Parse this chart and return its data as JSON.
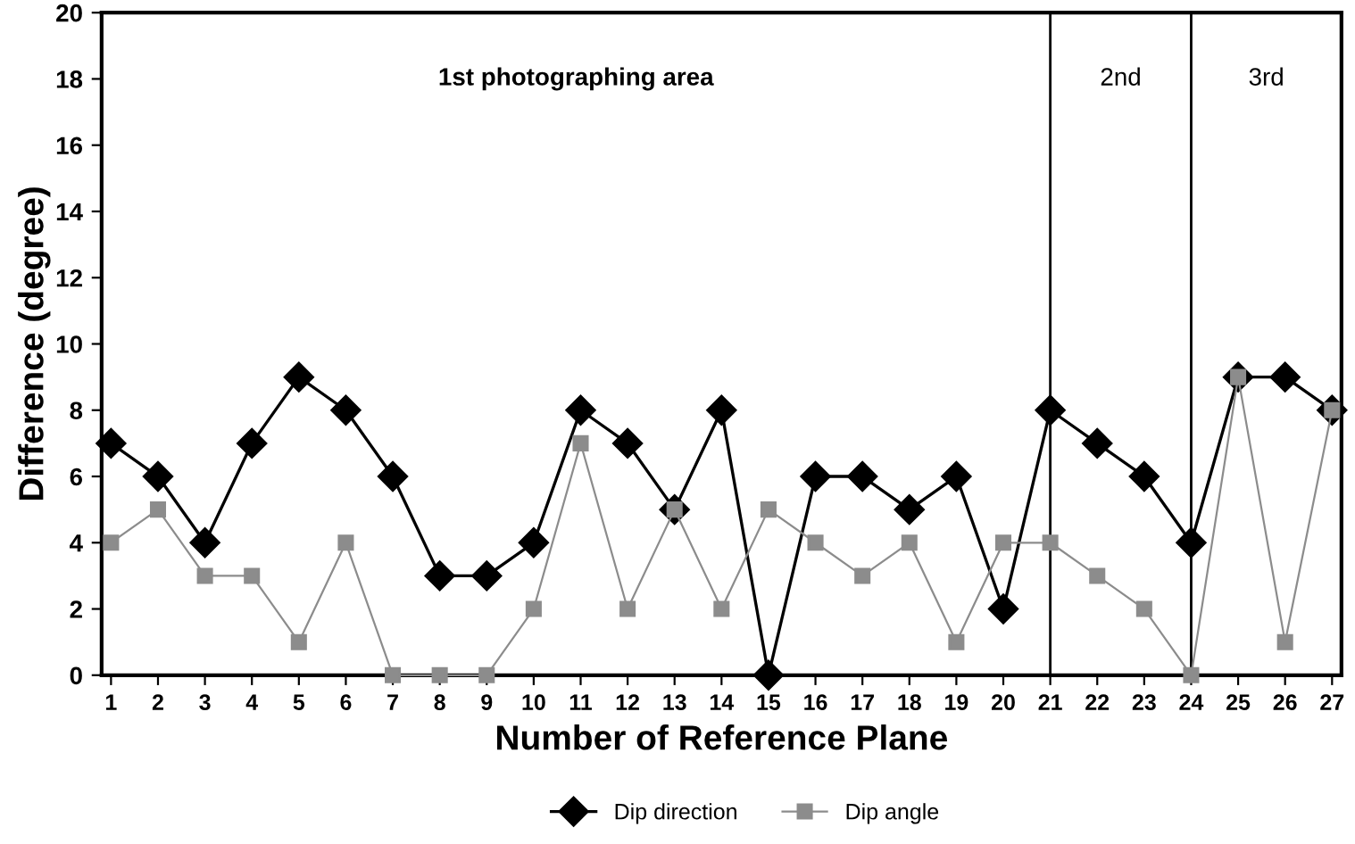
{
  "chart_data": {
    "type": "line",
    "xlabel": "Number of Reference Plane",
    "ylabel": "Difference (degree)",
    "x": [
      1,
      2,
      3,
      4,
      5,
      6,
      7,
      8,
      9,
      10,
      11,
      12,
      13,
      14,
      15,
      16,
      17,
      18,
      19,
      20,
      21,
      22,
      23,
      24,
      25,
      26,
      27
    ],
    "series": [
      {
        "name": "Dip direction",
        "color": "#000000",
        "marker": "diamond",
        "values": [
          7,
          6,
          4,
          7,
          9,
          8,
          6,
          3,
          3,
          4,
          8,
          7,
          5,
          8,
          0,
          6,
          6,
          5,
          6,
          2,
          8,
          7,
          6,
          4,
          9,
          9,
          8
        ]
      },
      {
        "name": "Dip angle",
        "color": "#8c8c8c",
        "marker": "square",
        "values": [
          4,
          5,
          3,
          3,
          1,
          4,
          0,
          0,
          0,
          2,
          7,
          2,
          5,
          2,
          5,
          4,
          3,
          4,
          1,
          4,
          4,
          3,
          2,
          0,
          9,
          1,
          8
        ]
      }
    ],
    "xlim": [
      0.8,
      27.2
    ],
    "xticks": [
      1,
      2,
      3,
      4,
      5,
      6,
      7,
      8,
      9,
      10,
      11,
      12,
      13,
      14,
      15,
      16,
      17,
      18,
      19,
      20,
      21,
      22,
      23,
      24,
      25,
      26,
      27
    ],
    "ylim": [
      0,
      20
    ],
    "yticks": [
      0,
      2,
      4,
      6,
      8,
      10,
      12,
      14,
      16,
      18,
      20
    ],
    "ref_lines": [
      {
        "axis": "x",
        "value": 21,
        "color": "#000000"
      },
      {
        "axis": "x",
        "value": 24,
        "color": "#000000"
      }
    ],
    "annotations": [
      "1st photographing area",
      "2nd",
      "3rd"
    ],
    "legend": "bottom",
    "grid": false
  }
}
